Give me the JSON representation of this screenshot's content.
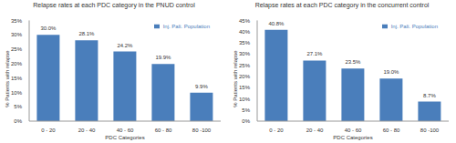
{
  "chart_data": [
    {
      "type": "bar",
      "title": "Relapse rates at each PDC category in the PNUD control",
      "categories": [
        "0 - 20",
        "20 - 40",
        "40 - 60",
        "60 - 80",
        "80 -100"
      ],
      "series": [
        {
          "name": "Inj. Pali. Population",
          "color": "#4a7ebb",
          "values": [
            30.0,
            28.1,
            24.2,
            19.9,
            9.9
          ],
          "value_labels": [
            "30.0%",
            "28.1%",
            "24.2%",
            "19.9%",
            "9.9%"
          ]
        }
      ],
      "x_label": "PDC Categories",
      "y_label": "% Patients with relapse",
      "ylim": [
        0,
        35
      ],
      "yticks": [
        {
          "value": 0,
          "label": "0%"
        },
        {
          "value": 5,
          "label": "5%"
        },
        {
          "value": 10,
          "label": "10%"
        },
        {
          "value": 15,
          "label": "15%"
        },
        {
          "value": 20,
          "label": "20%"
        },
        {
          "value": 25,
          "label": "25%"
        },
        {
          "value": 30,
          "label": "30%"
        },
        {
          "value": 35,
          "label": "35%"
        }
      ],
      "data_labels": true,
      "legend": "upper right",
      "grid": false
    },
    {
      "type": "bar",
      "title": "Relapse rates at each PDC category in the concurrent control",
      "categories": [
        "0 - 20",
        "20 - 40",
        "40 - 60",
        "60 - 80",
        "80 -100"
      ],
      "series": [
        {
          "name": "Inj. Pali. Population",
          "color": "#4a7ebb",
          "values": [
            40.8,
            27.1,
            23.5,
            19.0,
            8.7
          ],
          "value_labels": [
            "40.8%",
            "27.1%",
            "23.5%",
            "19.0%",
            "8.7%"
          ]
        }
      ],
      "x_label": "PDC Categories",
      "y_label": "% Patients with relapse",
      "ylim": [
        0,
        45
      ],
      "yticks": [
        {
          "value": 0,
          "label": "0%"
        },
        {
          "value": 5,
          "label": "5%"
        },
        {
          "value": 10,
          "label": "10%"
        },
        {
          "value": 15,
          "label": "15%"
        },
        {
          "value": 20,
          "label": "20%"
        },
        {
          "value": 25,
          "label": "25%"
        },
        {
          "value": 30,
          "label": "30%"
        },
        {
          "value": 35,
          "label": "35%"
        },
        {
          "value": 40,
          "label": "40%"
        },
        {
          "value": 45,
          "label": "45%"
        }
      ],
      "data_labels": true,
      "legend": "upper right",
      "grid": false
    }
  ]
}
